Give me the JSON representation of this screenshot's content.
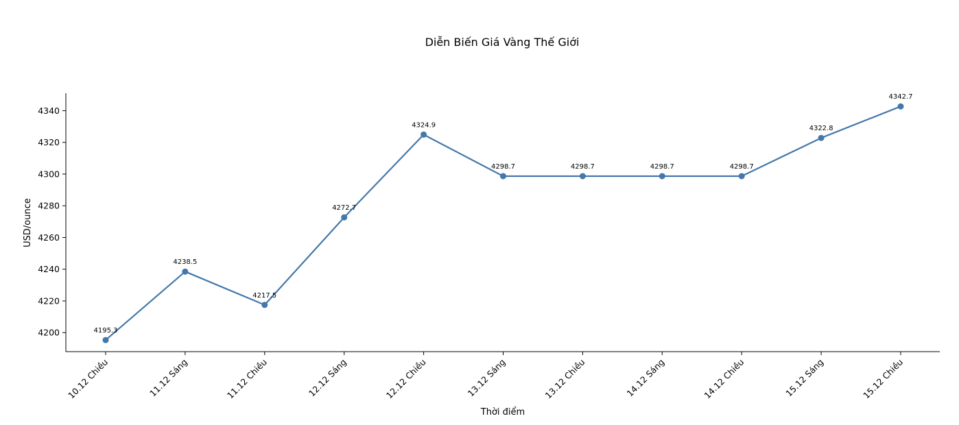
{
  "chart_data": {
    "type": "line",
    "title": "Diễn Biến Giá Vàng Thế Giới",
    "xlabel": "Thời điểm",
    "ylabel": "USD/ounce",
    "categories": [
      "10.12 Chiều",
      "11.12 Sáng",
      "11.12 Chiều",
      "12.12 Sáng",
      "12.12 Chiều",
      "13.12 Sáng",
      "13.12 Chiều",
      "14.12 Sáng",
      "14.12 Chiều",
      "15.12 Sáng",
      "15.12 Chiều"
    ],
    "series": [
      {
        "values": [
          4195.3,
          4238.5,
          4217.5,
          4272.7,
          4324.9,
          4298.7,
          4298.7,
          4298.7,
          4298.7,
          4322.8,
          4342.7
        ]
      }
    ],
    "data_labels": [
      "4195.3",
      "4238.5",
      "4217.5",
      "4272.7",
      "4324.9",
      "4298.7",
      "4298.7",
      "4298.7",
      "4298.7",
      "4322.8",
      "4342.7"
    ],
    "yticks": [
      4200,
      4220,
      4240,
      4260,
      4280,
      4300,
      4320,
      4340
    ],
    "ylim": [
      4188,
      4351
    ],
    "grid": false,
    "line_color": "#4477aa",
    "marker": "circle"
  }
}
